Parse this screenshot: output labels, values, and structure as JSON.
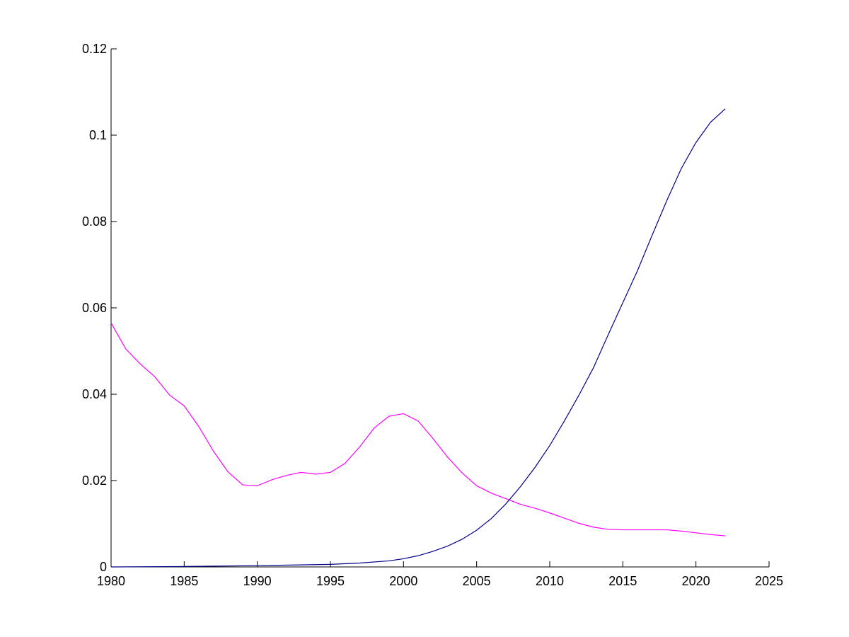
{
  "chart_data": {
    "type": "line",
    "title": "",
    "xlabel": "",
    "ylabel": "",
    "xlim": [
      1980,
      2025
    ],
    "ylim": [
      0,
      0.12
    ],
    "grid": false,
    "legend": "none",
    "x_ticks": [
      "1980",
      "1985",
      "1990",
      "1995",
      "2000",
      "2005",
      "2010",
      "2015",
      "2020",
      "2025"
    ],
    "y_ticks": [
      "0",
      "0.02",
      "0.04",
      "0.06",
      "0.08",
      "0.1",
      "0.12"
    ],
    "series": [
      {
        "color": "#ff00ff",
        "x": [
          1980,
          1981,
          1982,
          1983,
          1984,
          1985,
          1986,
          1987,
          1988,
          1989,
          1990,
          1991,
          1992,
          1993,
          1994,
          1995,
          1996,
          1997,
          1998,
          1999,
          2000,
          2001,
          2002,
          2003,
          2004,
          2005,
          2006,
          2007,
          2008,
          2009,
          2010,
          2011,
          2012,
          2013,
          2014,
          2015,
          2016,
          2017,
          2018,
          2019,
          2020,
          2021,
          2022
        ],
        "values": [
          0.0565,
          0.0505,
          0.047,
          0.044,
          0.0398,
          0.0373,
          0.0325,
          0.0268,
          0.022,
          0.019,
          0.0188,
          0.0202,
          0.0212,
          0.0219,
          0.0215,
          0.0219,
          0.024,
          0.0278,
          0.0322,
          0.0349,
          0.0355,
          0.0338,
          0.0298,
          0.0255,
          0.0218,
          0.0188,
          0.0171,
          0.0158,
          0.0145,
          0.0136,
          0.0125,
          0.0113,
          0.0101,
          0.0092,
          0.0087,
          0.0086,
          0.0086,
          0.0086,
          0.0086,
          0.0083,
          0.0079,
          0.0075,
          0.0072
        ]
      },
      {
        "color": "#00008b",
        "x": [
          1980,
          1985,
          1990,
          1995,
          1997,
          1999,
          2000,
          2001,
          2002,
          2003,
          2004,
          2005,
          2006,
          2007,
          2008,
          2009,
          2010,
          2011,
          2012,
          2013,
          2014,
          2015,
          2016,
          2017,
          2018,
          2019,
          2020,
          2021,
          2022
        ],
        "values": [
          0.0,
          0.0001,
          0.0003,
          0.0006,
          0.0009,
          0.0014,
          0.0019,
          0.0026,
          0.0036,
          0.0048,
          0.0064,
          0.0085,
          0.0112,
          0.0146,
          0.0186,
          0.0231,
          0.0281,
          0.0338,
          0.0398,
          0.0462,
          0.0538,
          0.0612,
          0.0686,
          0.0768,
          0.0848,
          0.0923,
          0.0983,
          0.103,
          0.1061
        ]
      }
    ]
  }
}
